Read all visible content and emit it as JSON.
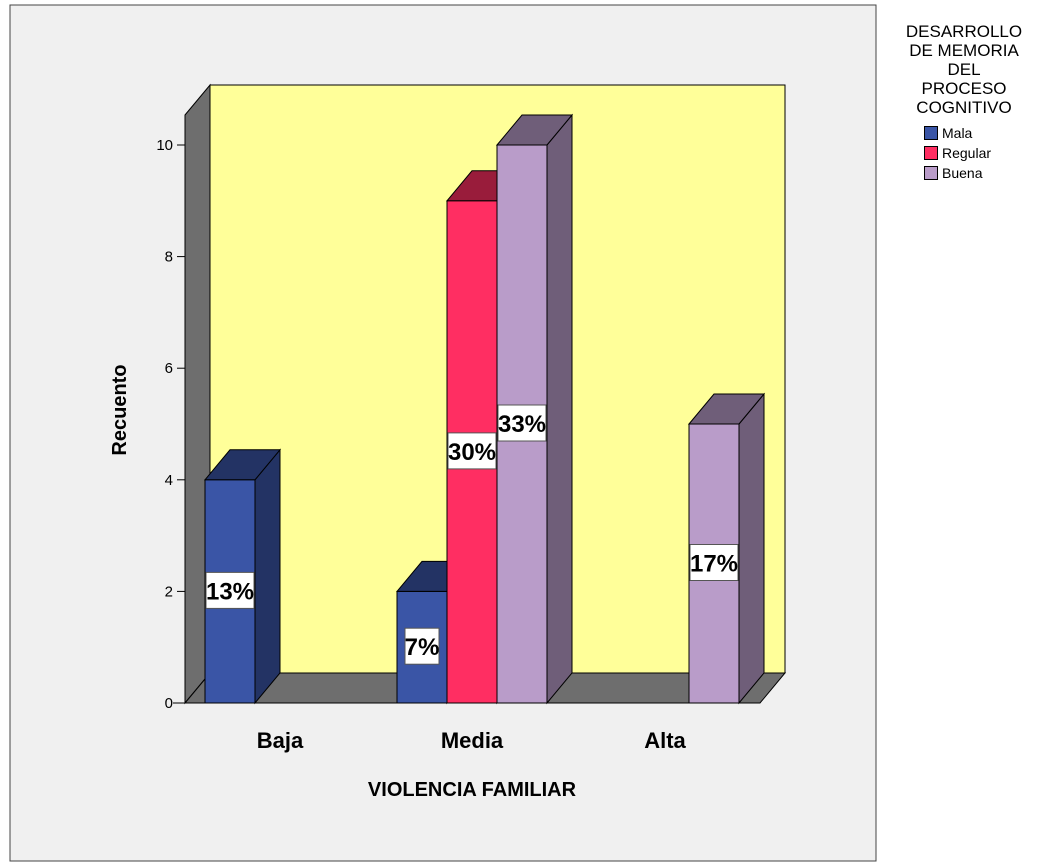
{
  "chart_data": {
    "type": "bar",
    "categories": [
      "Baja",
      "Media",
      "Alta"
    ],
    "series": [
      {
        "name": "Mala",
        "values": [
          4,
          2,
          0
        ],
        "labels": [
          "13%",
          "7%",
          ""
        ]
      },
      {
        "name": "Regular",
        "values": [
          0,
          9,
          0
        ],
        "labels": [
          "",
          "30%",
          ""
        ]
      },
      {
        "name": "Buena",
        "values": [
          0,
          10,
          5
        ],
        "labels": [
          "",
          "33%",
          "17%"
        ]
      }
    ],
    "xlabel": "VIOLENCIA FAMILIAR",
    "ylabel": "Recuento",
    "ylim": [
      0,
      10
    ],
    "yticks": [
      0,
      2,
      4,
      6,
      8,
      10
    ],
    "legend_title": "DESARROLLO\nDE MEMORIA\nDEL\nPROCESO\nCOGNITIVO",
    "legend_position": "top-right",
    "colors": {
      "Mala": "#3a55a6",
      "Regular": "#ff2e62",
      "Buena": "#b99cc9",
      "plot_background": "#ffff99",
      "outer_background": "#f0f0f0",
      "walls": "#6e6e6e"
    }
  }
}
